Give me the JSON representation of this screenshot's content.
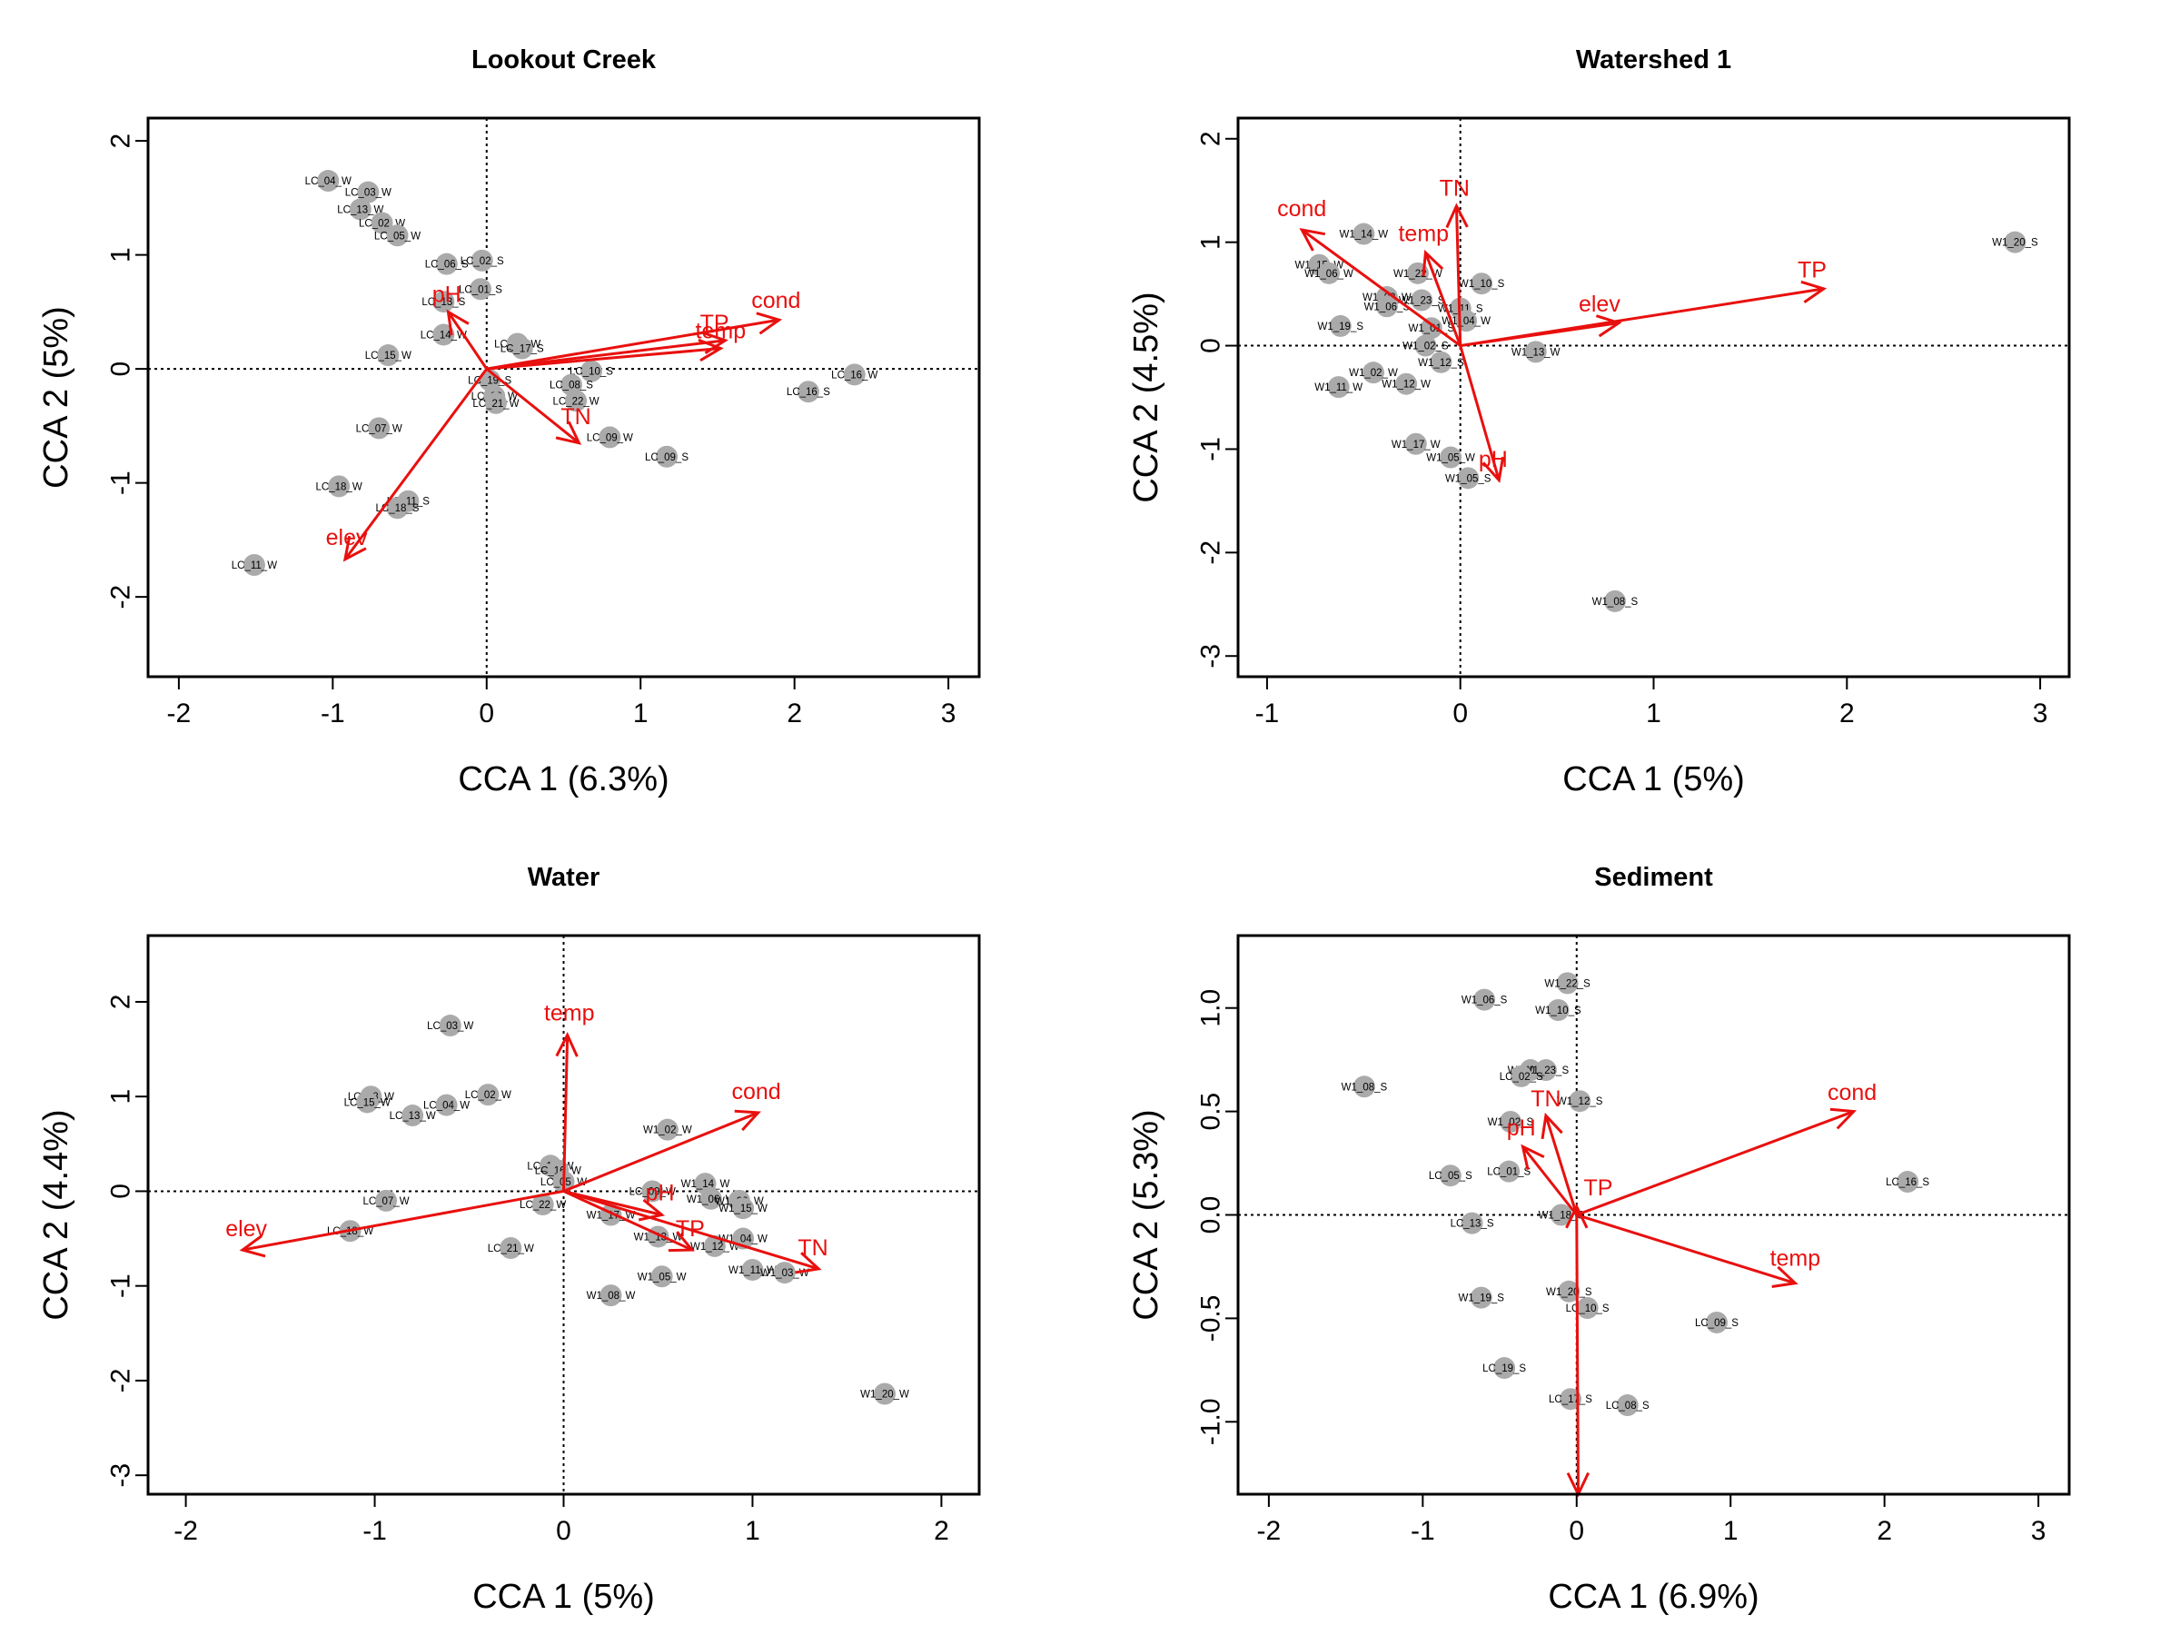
{
  "chart_data": [
    {
      "type": "scatter",
      "title": "Lookout Creek",
      "xlabel": "CCA 1 (6.3%)",
      "ylabel": "CCA 2 (5%)",
      "xlim": [
        -2.2,
        3.2
      ],
      "ylim": [
        -2.7,
        2.2
      ],
      "xticks": [
        -2,
        -1,
        0,
        1,
        2,
        3
      ],
      "yticks": [
        -2,
        -1,
        0,
        1,
        2
      ],
      "point_color": "#aaaaaa",
      "vector_color": "#e8100e",
      "points": [
        {
          "label": "LC_04_W",
          "x": -1.03,
          "y": 1.65
        },
        {
          "label": "LC_03_W",
          "x": -0.77,
          "y": 1.55
        },
        {
          "label": "LC_13_W",
          "x": -0.82,
          "y": 1.4
        },
        {
          "label": "LC_02_W",
          "x": -0.68,
          "y": 1.28
        },
        {
          "label": "LC_05_W",
          "x": -0.58,
          "y": 1.17
        },
        {
          "label": "LC_06_S",
          "x": -0.26,
          "y": 0.92
        },
        {
          "label": "LC_02_S",
          "x": -0.03,
          "y": 0.95
        },
        {
          "label": "LC_01_S",
          "x": -0.04,
          "y": 0.7
        },
        {
          "label": "LC_13_S",
          "x": -0.28,
          "y": 0.59
        },
        {
          "label": "LC_14_W",
          "x": -0.28,
          "y": 0.3
        },
        {
          "label": "LC_15_W",
          "x": -0.64,
          "y": 0.12
        },
        {
          "label": "LC_19_W",
          "x": 0.2,
          "y": 0.22
        },
        {
          "label": "LC_17_S",
          "x": 0.23,
          "y": 0.18
        },
        {
          "label": "LC_10_S",
          "x": 0.68,
          "y": -0.02
        },
        {
          "label": "LC_08_S",
          "x": 0.55,
          "y": -0.14
        },
        {
          "label": "LC_19_S",
          "x": 0.02,
          "y": -0.1
        },
        {
          "label": "LC_08_W",
          "x": 0.05,
          "y": -0.24
        },
        {
          "label": "LC_21_W",
          "x": 0.06,
          "y": -0.3
        },
        {
          "label": "LC_22_W",
          "x": 0.58,
          "y": -0.28
        },
        {
          "label": "LC_09_W",
          "x": 0.8,
          "y": -0.6
        },
        {
          "label": "LC_09_S",
          "x": 1.17,
          "y": -0.77
        },
        {
          "label": "LC_16_W",
          "x": 2.39,
          "y": -0.05
        },
        {
          "label": "LC_16_S",
          "x": 2.09,
          "y": -0.2
        },
        {
          "label": "LC_07_W",
          "x": -0.7,
          "y": -0.52
        },
        {
          "label": "LC_18_W",
          "x": -0.96,
          "y": -1.03
        },
        {
          "label": "LC_11_S",
          "x": -0.51,
          "y": -1.16
        },
        {
          "label": "LC_18_S",
          "x": -0.58,
          "y": -1.22
        },
        {
          "label": "LC_11_W",
          "x": -1.51,
          "y": -1.72
        }
      ],
      "vectors": [
        {
          "label": "cond",
          "x": 1.9,
          "y": 0.43
        },
        {
          "label": "TP",
          "x": 1.55,
          "y": 0.25
        },
        {
          "label": "temp",
          "x": 1.52,
          "y": 0.18
        },
        {
          "label": "pH",
          "x": -0.25,
          "y": 0.5
        },
        {
          "label": "TN",
          "x": 0.6,
          "y": -0.65
        },
        {
          "label": "elev",
          "x": -0.92,
          "y": -1.67
        }
      ],
      "vector_labels": [
        {
          "label": "cond",
          "x": 1.88,
          "y": 0.6
        },
        {
          "label": "TP",
          "x": 1.48,
          "y": 0.4
        },
        {
          "label": "temp",
          "x": 1.52,
          "y": 0.33
        },
        {
          "label": "pH",
          "x": -0.26,
          "y": 0.65
        },
        {
          "label": "TN",
          "x": 0.58,
          "y": -0.42
        },
        {
          "label": "elev",
          "x": -0.91,
          "y": -1.48
        }
      ]
    },
    {
      "type": "scatter",
      "title": "Watershed 1",
      "xlabel": "CCA 1 (5%)",
      "ylabel": "CCA 2 (4.5%)",
      "xlim": [
        -1.15,
        3.15
      ],
      "ylim": [
        -3.2,
        2.2
      ],
      "xticks": [
        -1,
        0,
        1,
        2,
        3
      ],
      "yticks": [
        -3,
        -2,
        -1,
        0,
        1,
        2
      ],
      "point_color": "#aaaaaa",
      "vector_color": "#e8100e",
      "points": [
        {
          "label": "W1_14_W",
          "x": -0.5,
          "y": 1.08
        },
        {
          "label": "W1_15_W",
          "x": -0.73,
          "y": 0.78
        },
        {
          "label": "W1_06_W",
          "x": -0.68,
          "y": 0.7
        },
        {
          "label": "W1_22_W",
          "x": -0.22,
          "y": 0.7
        },
        {
          "label": "W1_10_S",
          "x": 0.11,
          "y": 0.6
        },
        {
          "label": "W1_03_W",
          "x": -0.38,
          "y": 0.47
        },
        {
          "label": "W1_06_S",
          "x": -0.38,
          "y": 0.38
        },
        {
          "label": "W1_23_S",
          "x": -0.2,
          "y": 0.44
        },
        {
          "label": "W1_11_S",
          "x": 0.0,
          "y": 0.36
        },
        {
          "label": "W1_19_S",
          "x": -0.62,
          "y": 0.19
        },
        {
          "label": "W1_04_W",
          "x": 0.03,
          "y": 0.24
        },
        {
          "label": "W1_01_S",
          "x": -0.15,
          "y": 0.17
        },
        {
          "label": "W1_02_S",
          "x": -0.18,
          "y": 0.0
        },
        {
          "label": "W1_12_S",
          "x": -0.1,
          "y": -0.16
        },
        {
          "label": "W1_13_W",
          "x": 0.39,
          "y": -0.06
        },
        {
          "label": "W1_02_W",
          "x": -0.45,
          "y": -0.26
        },
        {
          "label": "W1_12_W",
          "x": -0.28,
          "y": -0.37
        },
        {
          "label": "W1_11_W",
          "x": -0.63,
          "y": -0.4
        },
        {
          "label": "W1_17_W",
          "x": -0.23,
          "y": -0.95
        },
        {
          "label": "W1_05_W",
          "x": -0.05,
          "y": -1.08
        },
        {
          "label": "W1_05_S",
          "x": 0.04,
          "y": -1.28
        },
        {
          "label": "W1_20_S",
          "x": 2.87,
          "y": 1.0
        },
        {
          "label": "W1_08_S",
          "x": 0.8,
          "y": -2.47
        }
      ],
      "vectors": [
        {
          "label": "cond",
          "x": -0.82,
          "y": 1.12
        },
        {
          "label": "TN",
          "x": -0.02,
          "y": 1.35
        },
        {
          "label": "temp",
          "x": -0.18,
          "y": 0.9
        },
        {
          "label": "TP",
          "x": 1.88,
          "y": 0.55
        },
        {
          "label": "elev",
          "x": 0.82,
          "y": 0.22
        },
        {
          "label": "pH",
          "x": 0.2,
          "y": -1.3
        }
      ],
      "vector_labels": [
        {
          "label": "cond",
          "x": -0.82,
          "y": 1.32
        },
        {
          "label": "TN",
          "x": -0.03,
          "y": 1.52
        },
        {
          "label": "temp",
          "x": -0.19,
          "y": 1.08
        },
        {
          "label": "TP",
          "x": 1.82,
          "y": 0.73
        },
        {
          "label": "elev",
          "x": 0.72,
          "y": 0.4
        },
        {
          "label": "pH",
          "x": 0.17,
          "y": -1.1
        }
      ]
    },
    {
      "type": "scatter",
      "title": "Water",
      "xlabel": "CCA 1 (5%)",
      "ylabel": "CCA 2 (4.4%)",
      "xlim": [
        -2.2,
        2.2
      ],
      "ylim": [
        -3.2,
        2.7
      ],
      "xticks": [
        -2,
        -1,
        0,
        1,
        2
      ],
      "yticks": [
        -3,
        -2,
        -1,
        0,
        1,
        2
      ],
      "point_color": "#aaaaaa",
      "vector_color": "#e8100e",
      "points": [
        {
          "label": "LC_03_W",
          "x": -0.6,
          "y": 1.75
        },
        {
          "label": "LC_02_W",
          "x": -0.4,
          "y": 1.02
        },
        {
          "label": "LC_08_W",
          "x": -1.02,
          "y": 1.0
        },
        {
          "label": "LC_15_W",
          "x": -1.04,
          "y": 0.94
        },
        {
          "label": "LC_04_W",
          "x": -0.62,
          "y": 0.91
        },
        {
          "label": "LC_13_W",
          "x": -0.8,
          "y": 0.8
        },
        {
          "label": "LC_14_W",
          "x": -0.07,
          "y": 0.27
        },
        {
          "label": "LC_16_W",
          "x": -0.03,
          "y": 0.22
        },
        {
          "label": "LC_05_W",
          "x": 0.0,
          "y": 0.1
        },
        {
          "label": "LC_07_W",
          "x": -0.94,
          "y": -0.1
        },
        {
          "label": "LC_22_W",
          "x": -0.11,
          "y": -0.14
        },
        {
          "label": "LC_18_W",
          "x": -1.13,
          "y": -0.42
        },
        {
          "label": "LC_21_W",
          "x": -0.28,
          "y": -0.6
        },
        {
          "label": "LC_09_W",
          "x": 0.47,
          "y": 0.0
        },
        {
          "label": "W1_02_W",
          "x": 0.55,
          "y": 0.65
        },
        {
          "label": "W1_14_W",
          "x": 0.75,
          "y": 0.08
        },
        {
          "label": "W1_06_W",
          "x": 0.78,
          "y": -0.08
        },
        {
          "label": "W1_22_W",
          "x": 0.93,
          "y": -0.1
        },
        {
          "label": "W1_15_W",
          "x": 0.95,
          "y": -0.18
        },
        {
          "label": "W1_17_W",
          "x": 0.25,
          "y": -0.25
        },
        {
          "label": "W1_13_W",
          "x": 0.5,
          "y": -0.48
        },
        {
          "label": "W1_12_W",
          "x": 0.8,
          "y": -0.58
        },
        {
          "label": "W1_04_W",
          "x": 0.95,
          "y": -0.5
        },
        {
          "label": "W1_05_W",
          "x": 0.52,
          "y": -0.9
        },
        {
          "label": "W1_11_W",
          "x": 1.0,
          "y": -0.83
        },
        {
          "label": "W1_03_W",
          "x": 1.17,
          "y": -0.86
        },
        {
          "label": "W1_08_W",
          "x": 0.25,
          "y": -1.1
        },
        {
          "label": "W1_20_W",
          "x": 1.7,
          "y": -2.14
        }
      ],
      "vectors": [
        {
          "label": "temp",
          "x": 0.02,
          "y": 1.65
        },
        {
          "label": "cond",
          "x": 1.03,
          "y": 0.83
        },
        {
          "label": "elev",
          "x": -1.7,
          "y": -0.62
        },
        {
          "label": "TP",
          "x": 0.68,
          "y": -0.62
        },
        {
          "label": "pH",
          "x": 0.52,
          "y": -0.25
        },
        {
          "label": "TN",
          "x": 1.35,
          "y": -0.82
        }
      ],
      "vector_labels": [
        {
          "label": "temp",
          "x": 0.03,
          "y": 1.88
        },
        {
          "label": "cond",
          "x": 1.02,
          "y": 1.05
        },
        {
          "label": "elev",
          "x": -1.68,
          "y": -0.4
        },
        {
          "label": "TP",
          "x": 0.67,
          "y": -0.4
        },
        {
          "label": "pH",
          "x": 0.51,
          "y": -0.02
        },
        {
          "label": "TN",
          "x": 1.32,
          "y": -0.6
        }
      ]
    },
    {
      "type": "scatter",
      "title": "Sediment",
      "xlabel": "CCA 1 (6.9%)",
      "ylabel": "CCA 2 (5.3%)",
      "xlim": [
        -2.2,
        3.2
      ],
      "ylim": [
        -1.35,
        1.35
      ],
      "xticks": [
        -2,
        -1,
        0,
        1,
        2,
        3
      ],
      "yticks": [
        -1.0,
        -0.5,
        0.0,
        0.5,
        1.0
      ],
      "point_color": "#aaaaaa",
      "vector_color": "#e8100e",
      "points": [
        {
          "label": "W1_22_S",
          "x": -0.06,
          "y": 1.12
        },
        {
          "label": "W1_06_S",
          "x": -0.6,
          "y": 1.04
        },
        {
          "label": "W1_10_S",
          "x": -0.12,
          "y": 0.99
        },
        {
          "label": "W1_08_S",
          "x": -1.38,
          "y": 0.62
        },
        {
          "label": "W1_01_S",
          "x": -0.3,
          "y": 0.7
        },
        {
          "label": "W1_23_S",
          "x": -0.2,
          "y": 0.7
        },
        {
          "label": "LC_02_S",
          "x": -0.36,
          "y": 0.67
        },
        {
          "label": "W1_12_S",
          "x": 0.02,
          "y": 0.55
        },
        {
          "label": "W1_02_S",
          "x": -0.43,
          "y": 0.45
        },
        {
          "label": "LC_05_S",
          "x": -0.82,
          "y": 0.19
        },
        {
          "label": "LC_01_S",
          "x": -0.44,
          "y": 0.21
        },
        {
          "label": "LC_13_S",
          "x": -0.68,
          "y": -0.04
        },
        {
          "label": "W1_18_S",
          "x": -0.1,
          "y": 0.0
        },
        {
          "label": "LC_16_S",
          "x": 2.15,
          "y": 0.16
        },
        {
          "label": "W1_19_S",
          "x": -0.62,
          "y": -0.4
        },
        {
          "label": "W1_20_S",
          "x": -0.05,
          "y": -0.37
        },
        {
          "label": "LC_10_S",
          "x": 0.07,
          "y": -0.45
        },
        {
          "label": "LC_09_S",
          "x": 0.91,
          "y": -0.52
        },
        {
          "label": "LC_19_S",
          "x": -0.47,
          "y": -0.74
        },
        {
          "label": "LC_17_S",
          "x": -0.04,
          "y": -0.89
        },
        {
          "label": "LC_08_S",
          "x": 0.33,
          "y": -0.92
        }
      ],
      "vectors": [
        {
          "label": "cond",
          "x": 1.8,
          "y": 0.5
        },
        {
          "label": "temp",
          "x": 1.42,
          "y": -0.33
        },
        {
          "label": "TN",
          "x": -0.2,
          "y": 0.48
        },
        {
          "label": "pH",
          "x": -0.35,
          "y": 0.33
        },
        {
          "label": "TP",
          "x": 0.0,
          "y": 0.04
        },
        {
          "label": "",
          "x": 0.01,
          "y": -1.35
        }
      ],
      "vector_labels": [
        {
          "label": "cond",
          "x": 1.79,
          "y": 0.59
        },
        {
          "label": "temp",
          "x": 1.42,
          "y": -0.21
        },
        {
          "label": "TN",
          "x": -0.2,
          "y": 0.56
        },
        {
          "label": "pH",
          "x": -0.36,
          "y": 0.42
        },
        {
          "label": "TP",
          "x": 0.14,
          "y": 0.13
        }
      ]
    }
  ]
}
